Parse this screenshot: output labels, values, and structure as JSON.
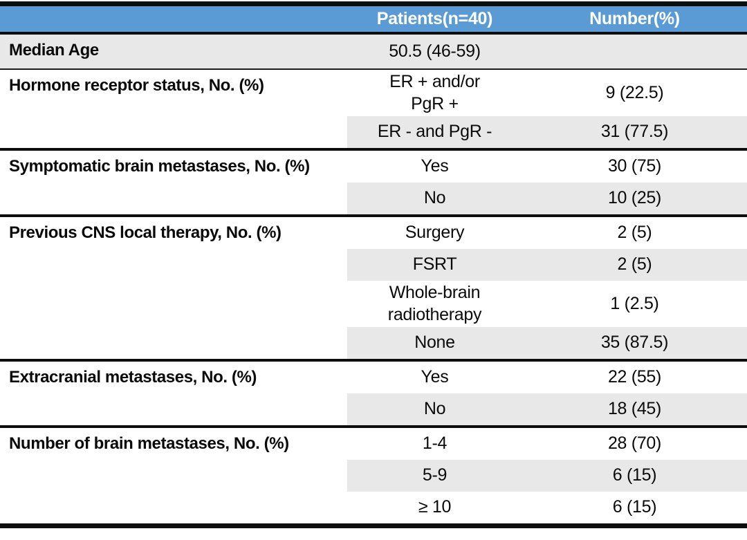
{
  "table": {
    "header": {
      "patients": "Patients(n=40)",
      "number": "Number(%)"
    },
    "groups": [
      {
        "label": "Median Age",
        "full_shade": true,
        "rows": [
          {
            "value": "50.5 (46-59)",
            "number": "",
            "shaded": false
          }
        ]
      },
      {
        "label": "Hormone receptor status, No. (%)",
        "full_shade": false,
        "rows": [
          {
            "value": "ER + and/or\nPgR +",
            "number": "9 (22.5)",
            "shaded": false
          },
          {
            "value": "ER - and PgR -",
            "number": "31 (77.5)",
            "shaded": true
          }
        ]
      },
      {
        "label": "Symptomatic brain metastases, No. (%)",
        "full_shade": false,
        "rows": [
          {
            "value": "Yes",
            "number": "30 (75)",
            "shaded": false
          },
          {
            "value": "No",
            "number": "10 (25)",
            "shaded": true
          }
        ]
      },
      {
        "label": "Previous CNS local therapy, No. (%)",
        "full_shade": false,
        "rows": [
          {
            "value": "Surgery",
            "number": "2 (5)",
            "shaded": false
          },
          {
            "value": "FSRT",
            "number": "2 (5)",
            "shaded": true
          },
          {
            "value": "Whole-brain\nradiotherapy",
            "number": "1 (2.5)",
            "shaded": false
          },
          {
            "value": "None",
            "number": "35 (87.5)",
            "shaded": true
          }
        ]
      },
      {
        "label": "Extracranial metastases, No. (%)",
        "full_shade": false,
        "rows": [
          {
            "value": "Yes",
            "number": "22 (55)",
            "shaded": false
          },
          {
            "value": "No",
            "number": "18 (45)",
            "shaded": true
          }
        ]
      },
      {
        "label": "Number of brain metastases, No. (%)",
        "full_shade": false,
        "rows": [
          {
            "value": "1-4",
            "number": "28 (70)",
            "shaded": false
          },
          {
            "value": "5-9",
            "number": "6 (15)",
            "shaded": true
          },
          {
            "value": "≥ 10",
            "number": "6 (15)",
            "shaded": false
          }
        ]
      }
    ],
    "colors": {
      "header_bg": "#5b9bd5",
      "header_text": "#ffffff",
      "band_shade": "#e8e8e8",
      "border": "#0d0d0d"
    }
  }
}
